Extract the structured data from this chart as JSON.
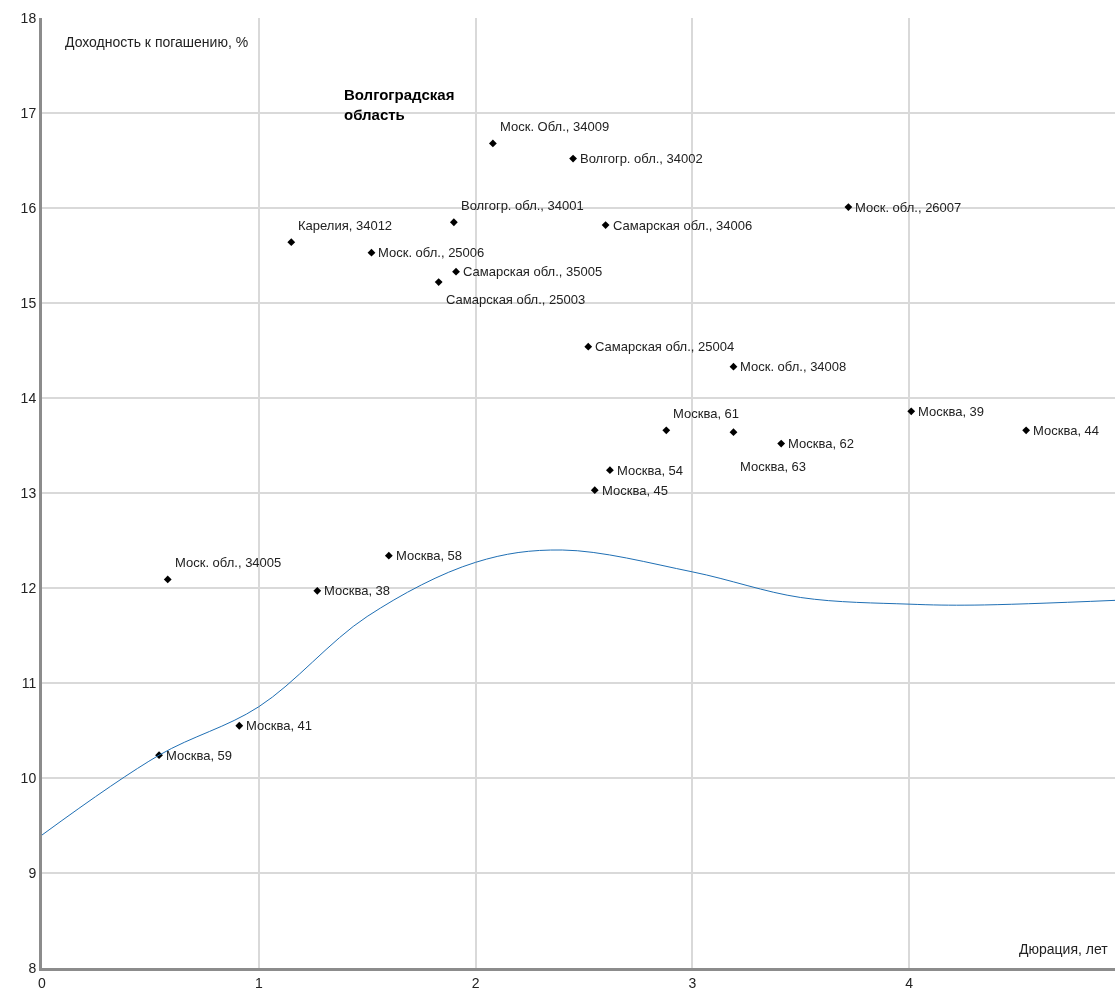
{
  "chart_data": {
    "type": "scatter",
    "xlabel": "Дюрация, лет",
    "ylabel": "Доходность к погашению, %",
    "xlim": [
      0,
      4.95
    ],
    "xticks": [
      0,
      1,
      2,
      3,
      4
    ],
    "ylim": [
      8,
      18
    ],
    "yticks": [
      8,
      9,
      10,
      11,
      12,
      13,
      14,
      15,
      16,
      17,
      18
    ],
    "grid": true,
    "marker": "diamond",
    "legend": false,
    "annotations": [
      "Волгоградская область",
      {
        "text": "Москва, 59",
        "x": 0.54,
        "y": 10.24
      },
      {
        "text": "Москва, 41",
        "x": 0.91,
        "y": 10.55
      },
      {
        "text": "Моск. обл., 34005",
        "x": 0.58,
        "y": 12.09
      },
      {
        "text": "Москва, 38",
        "x": 1.27,
        "y": 11.97
      },
      {
        "text": "Москва, 58",
        "x": 1.6,
        "y": 12.34
      },
      {
        "text": "Карелия, 34012",
        "x": 1.15,
        "y": 15.64
      },
      {
        "text": "Моск. обл., 25006",
        "x": 1.52,
        "y": 15.53
      },
      {
        "text": "Самарская обл., 25003",
        "x": 1.83,
        "y": 15.22
      },
      {
        "text": "Самарская обл., 35005",
        "x": 1.91,
        "y": 15.33
      },
      {
        "text": "Волгогр. обл., 34001",
        "x": 1.9,
        "y": 15.85
      },
      {
        "text": "Моск. Обл., 34009",
        "x": 2.08,
        "y": 16.68
      },
      {
        "text": "Волгогр. обл., 34002",
        "x": 2.45,
        "y": 16.52
      },
      {
        "text": "Самарская обл., 34006",
        "x": 2.6,
        "y": 15.82
      },
      {
        "text": "Моск. обл., 26007",
        "x": 3.72,
        "y": 16.01
      },
      {
        "text": "Самарская обл., 25004",
        "x": 2.52,
        "y": 14.54
      },
      {
        "text": "Моск. обл., 34008",
        "x": 3.19,
        "y": 14.33
      },
      {
        "text": "Москва, 61",
        "x": 2.88,
        "y": 13.66
      },
      {
        "text": "Москва, 63",
        "x": 3.19,
        "y": 13.64
      },
      {
        "text": "Москва, 62",
        "x": 3.41,
        "y": 13.52
      },
      {
        "text": "Москва, 39",
        "x": 4.01,
        "y": 13.86
      },
      {
        "text": "Москва, 44",
        "x": 4.54,
        "y": 13.66
      },
      {
        "text": "Москва, 54",
        "x": 2.62,
        "y": 13.24
      },
      {
        "text": "Москва, 45",
        "x": 2.55,
        "y": 13.03
      }
    ],
    "series": [
      {
        "color": "#000000",
        "x": [
          0.54,
          0.91,
          0.58,
          1.27,
          1.6,
          1.15,
          1.52,
          1.83,
          1.91,
          1.9,
          2.08,
          2.45,
          2.6,
          3.72,
          2.52,
          3.19,
          2.88,
          3.19,
          3.41,
          4.01,
          4.54,
          2.62,
          2.55
        ],
        "values": [
          10.24,
          10.55,
          12.09,
          11.97,
          12.34,
          15.64,
          15.53,
          15.22,
          15.33,
          15.85,
          16.68,
          16.52,
          15.82,
          16.01,
          14.54,
          14.33,
          13.66,
          13.64,
          13.52,
          13.86,
          13.66,
          13.24,
          13.03
        ]
      },
      {
        "type": "line",
        "color": "#1f6fb4",
        "line_style": "solid",
        "marker": "none",
        "x": [
          0,
          0.54,
          1,
          1.5,
          2,
          2.4,
          3,
          3.5,
          4,
          4.3,
          4.95
        ],
        "values": [
          9.4,
          10.24,
          10.75,
          11.7,
          12.27,
          12.4,
          12.17,
          11.9,
          11.83,
          11.82,
          11.87
        ]
      }
    ]
  }
}
